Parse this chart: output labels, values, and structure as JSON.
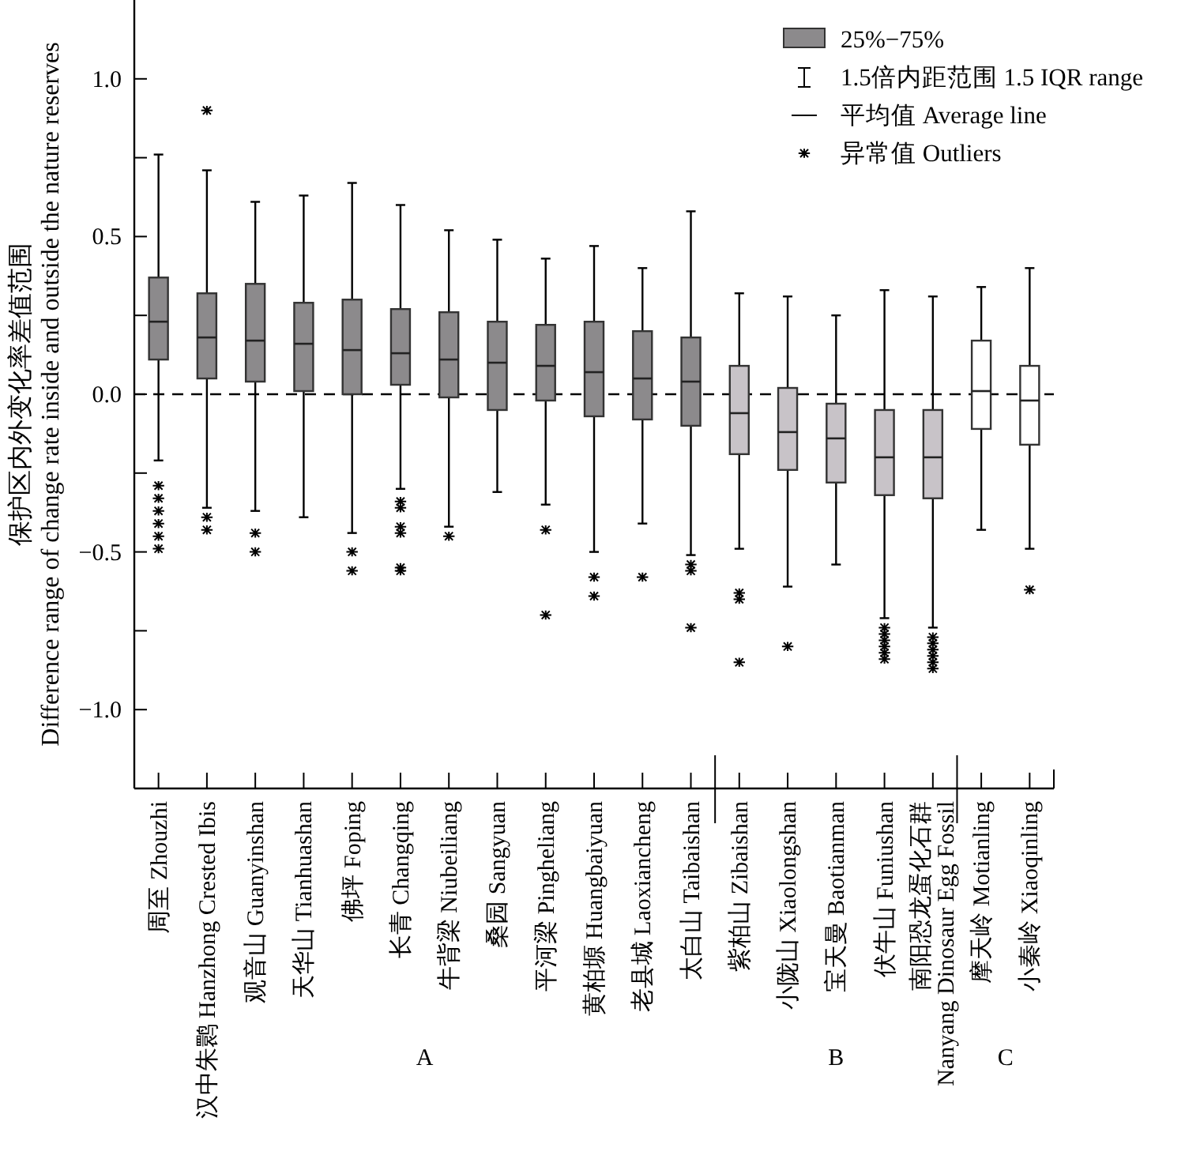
{
  "chart_data": {
    "type": "box",
    "ylabel": "保护区内外变化率差值范围\nDifference range of change rate inside and outside the nature reserves",
    "categories": [
      "周至 Zhouzhi",
      "汉中朱鹮 Hanzhong Crested Ibis",
      "观音山 Guanyinshan",
      "天华山 Tianhuashan",
      "佛坪 Foping",
      "长青 Changqing",
      "牛背梁 Niubeiliang",
      "桑园 Sangyuan",
      "平河梁 Pingheliang",
      "黄柏塬 Huangbaiyuan",
      "老县城 Laoxiancheng",
      "太白山 Taibaishan",
      "紫柏山 Zibaishan",
      "小陇山 Xiaolongshan",
      "宝天曼 Baotianman",
      "伏牛山 Funiushan",
      "南阳恐龙蛋化石群\nNanyang Dinosaur Egg Fossil",
      "摩天岭 Motianling",
      "小秦岭 Xiaoqinling"
    ],
    "colors": [
      "#8c8a8c",
      "#8c8a8c",
      "#8c8a8c",
      "#8c8a8c",
      "#8c8a8c",
      "#8c8a8c",
      "#8c8a8c",
      "#8c8a8c",
      "#8c8a8c",
      "#8c8a8c",
      "#8c8a8c",
      "#8c8a8c",
      "#c8c3c8",
      "#c8c3c8",
      "#c8c3c8",
      "#c8c3c8",
      "#c8c3c8",
      "#ffffff",
      "#ffffff"
    ],
    "boxes": [
      {
        "low": -0.21,
        "q1": 0.11,
        "median": 0.23,
        "q3": 0.37,
        "high": 0.76,
        "outliers": [
          -0.29,
          -0.33,
          -0.37,
          -0.41,
          -0.45,
          -0.49
        ]
      },
      {
        "low": -0.36,
        "q1": 0.05,
        "median": 0.18,
        "q3": 0.32,
        "high": 0.71,
        "outliers": [
          0.9,
          -0.39,
          -0.43
        ]
      },
      {
        "low": -0.37,
        "q1": 0.04,
        "median": 0.17,
        "q3": 0.35,
        "high": 0.61,
        "outliers": [
          -0.44,
          -0.5
        ]
      },
      {
        "low": -0.39,
        "q1": 0.01,
        "median": 0.16,
        "q3": 0.29,
        "high": 0.63
      },
      {
        "low": -0.44,
        "q1": 0.0,
        "median": 0.14,
        "q3": 0.3,
        "high": 0.67,
        "outliers": [
          -0.5,
          -0.56
        ]
      },
      {
        "low": -0.3,
        "q1": 0.03,
        "median": 0.13,
        "q3": 0.27,
        "high": 0.6,
        "outliers": [
          -0.34,
          -0.36,
          -0.42,
          -0.44,
          -0.55,
          -0.56
        ]
      },
      {
        "low": -0.42,
        "q1": -0.01,
        "median": 0.11,
        "q3": 0.26,
        "high": 0.52,
        "outliers": [
          -0.45
        ]
      },
      {
        "low": -0.31,
        "q1": -0.05,
        "median": 0.1,
        "q3": 0.23,
        "high": 0.49
      },
      {
        "low": -0.35,
        "q1": -0.02,
        "median": 0.09,
        "q3": 0.22,
        "high": 0.43,
        "outliers": [
          -0.43,
          -0.7
        ]
      },
      {
        "low": -0.5,
        "q1": -0.07,
        "median": 0.07,
        "q3": 0.23,
        "high": 0.47,
        "outliers": [
          -0.58,
          -0.64
        ]
      },
      {
        "low": -0.41,
        "q1": -0.08,
        "median": 0.05,
        "q3": 0.2,
        "high": 0.4,
        "outliers": [
          -0.58
        ]
      },
      {
        "low": -0.51,
        "q1": -0.1,
        "median": 0.04,
        "q3": 0.18,
        "high": 0.58,
        "outliers": [
          -0.54,
          -0.56,
          -0.74
        ]
      },
      {
        "low": -0.49,
        "q1": -0.19,
        "median": -0.06,
        "q3": 0.09,
        "high": 0.32,
        "outliers": [
          -0.63,
          -0.65,
          -0.85
        ]
      },
      {
        "low": -0.61,
        "q1": -0.24,
        "median": -0.12,
        "q3": 0.02,
        "high": 0.31,
        "outliers": [
          -0.8
        ]
      },
      {
        "low": -0.54,
        "q1": -0.28,
        "median": -0.14,
        "q3": -0.03,
        "high": 0.25
      },
      {
        "low": -0.71,
        "q1": -0.32,
        "median": -0.2,
        "q3": -0.05,
        "high": 0.33,
        "outliers": [
          -0.74,
          -0.76,
          -0.78,
          -0.8,
          -0.82,
          -0.84
        ]
      },
      {
        "low": -0.74,
        "q1": -0.33,
        "median": -0.2,
        "q3": -0.05,
        "high": 0.31,
        "outliers": [
          -0.77,
          -0.79,
          -0.81,
          -0.83,
          -0.85,
          -0.87
        ]
      },
      {
        "low": -0.43,
        "q1": -0.11,
        "median": 0.01,
        "q3": 0.17,
        "high": 0.34
      },
      {
        "low": -0.49,
        "q1": -0.16,
        "median": -0.02,
        "q3": 0.09,
        "high": 0.4,
        "outliers": [
          -0.62
        ]
      }
    ],
    "ylim": [
      -1.25,
      1.25
    ],
    "yticks": [
      {
        "value": -1.0,
        "label": "−1.0"
      },
      {
        "value": -0.75,
        "label": null
      },
      {
        "value": -0.5,
        "label": "−0.5"
      },
      {
        "value": -0.25,
        "label": null
      },
      {
        "value": 0,
        "label": "0.0"
      },
      {
        "value": 0.25,
        "label": null
      },
      {
        "value": 0.5,
        "label": "0.5"
      },
      {
        "value": 0.75,
        "label": null
      },
      {
        "value": 1.0,
        "label": "1.0"
      }
    ],
    "ref_lines": [
      {
        "axis": "y",
        "value": 0,
        "line_style": "dashed",
        "color": "#000000"
      }
    ],
    "annotations": [
      "25%−75%",
      "1.5倍内距范围 1.5 IQR range",
      "平均值 Average line",
      "异常值 Outliers",
      "A",
      "B",
      "C"
    ],
    "grid": false
  }
}
